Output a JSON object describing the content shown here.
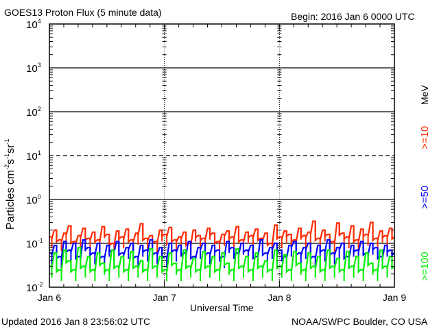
{
  "chart_data": {
    "type": "line",
    "title": "GOES13 Proton Flux (5 minute data)",
    "begin_label": "Begin: 2016 Jan 6 0000 UTC",
    "xlabel": "Universal Time",
    "ylabel_parts": [
      "Particles cm",
      "-2",
      "s",
      "-1",
      "sr",
      "-1"
    ],
    "yscale": "log",
    "ylim": [
      0.01,
      10000
    ],
    "xlim_days": [
      0,
      3
    ],
    "xticks": [
      {
        "label": "Jan 6",
        "day": 0
      },
      {
        "label": "Jan 7",
        "day": 1
      },
      {
        "label": "Jan 8",
        "day": 2
      },
      {
        "label": "Jan 9",
        "day": 3
      }
    ],
    "yticks": [
      {
        "base": "10",
        "exp": "4",
        "value": 10000
      },
      {
        "base": "10",
        "exp": "3",
        "value": 1000
      },
      {
        "base": "10",
        "exp": "2",
        "value": 100
      },
      {
        "base": "10",
        "exp": "1",
        "value": 10
      },
      {
        "base": "10",
        "exp": "0",
        "value": 1
      },
      {
        "base": "10",
        "exp": "-1",
        "value": 0.1
      },
      {
        "base": "10",
        "exp": "-2",
        "value": 0.01
      }
    ],
    "threshold_line": 10,
    "energy_unit": "MeV",
    "x_step_hours": 1,
    "series": [
      {
        "name": ">=10",
        "color": "#ff2a00",
        "values": [
          0.14,
          0.2,
          0.12,
          0.17,
          0.25,
          0.11,
          0.15,
          0.22,
          0.13,
          0.18,
          0.12,
          0.24,
          0.16,
          0.1,
          0.19,
          0.14,
          0.21,
          0.12,
          0.17,
          0.28,
          0.13,
          0.15,
          0.11,
          0.2,
          0.16,
          0.23,
          0.12,
          0.14,
          0.18,
          0.1,
          0.2,
          0.15,
          0.13,
          0.22,
          0.17,
          0.11,
          0.16,
          0.19,
          0.14,
          0.24,
          0.12,
          0.18,
          0.15,
          0.21,
          0.13,
          0.17,
          0.1,
          0.26,
          0.14,
          0.19,
          0.16,
          0.12,
          0.22,
          0.15,
          0.18,
          0.32,
          0.13,
          0.2,
          0.16,
          0.11,
          0.29,
          0.17,
          0.14,
          0.25,
          0.12,
          0.21,
          0.16,
          0.3,
          0.13,
          0.19,
          0.15,
          0.22
        ]
      },
      {
        "name": ">=50",
        "color": "#0000ff",
        "values": [
          0.06,
          0.09,
          0.05,
          0.11,
          0.07,
          0.1,
          0.05,
          0.12,
          0.08,
          0.06,
          0.1,
          0.05,
          0.09,
          0.07,
          0.11,
          0.06,
          0.08,
          0.1,
          0.05,
          0.09,
          0.07,
          0.12,
          0.06,
          0.08,
          0.05,
          0.1,
          0.07,
          0.09,
          0.06,
          0.11,
          0.05,
          0.08,
          0.1,
          0.06,
          0.09,
          0.07,
          0.05,
          0.11,
          0.08,
          0.06,
          0.1,
          0.07,
          0.09,
          0.05,
          0.12,
          0.06,
          0.08,
          0.1,
          0.07,
          0.05,
          0.09,
          0.11,
          0.06,
          0.08,
          0.1,
          0.05,
          0.09,
          0.07,
          0.12,
          0.06,
          0.08,
          0.1,
          0.05,
          0.09,
          0.07,
          0.11,
          0.06,
          0.1,
          0.08,
          0.05,
          0.09,
          0.07
        ]
      },
      {
        "name": ">=100",
        "color": "#00ee00",
        "values": [
          0.03,
          0.06,
          0.025,
          0.07,
          0.04,
          0.025,
          0.08,
          0.03,
          0.05,
          0.025,
          0.06,
          0.035,
          0.025,
          0.07,
          0.03,
          0.05,
          0.025,
          0.065,
          0.03,
          0.04,
          0.025,
          0.075,
          0.03,
          0.05,
          0.025,
          0.06,
          0.035,
          0.025,
          0.07,
          0.03,
          0.045,
          0.025,
          0.065,
          0.03,
          0.05,
          0.025,
          0.06,
          0.035,
          0.025,
          0.075,
          0.03,
          0.05,
          0.025,
          0.06,
          0.03,
          0.04,
          0.025,
          0.07,
          0.03,
          0.055,
          0.025,
          0.065,
          0.035,
          0.025,
          0.06,
          0.03,
          0.05,
          0.025,
          0.07,
          0.03,
          0.045,
          0.025,
          0.065,
          0.03,
          0.05,
          0.025,
          0.06,
          0.035,
          0.025,
          0.07,
          0.03,
          0.05
        ]
      }
    ]
  },
  "footer": {
    "updated": "Updated 2016 Jan  8 23:56:02 UTC",
    "source": "NOAA/SWPC Boulder, CO USA"
  }
}
